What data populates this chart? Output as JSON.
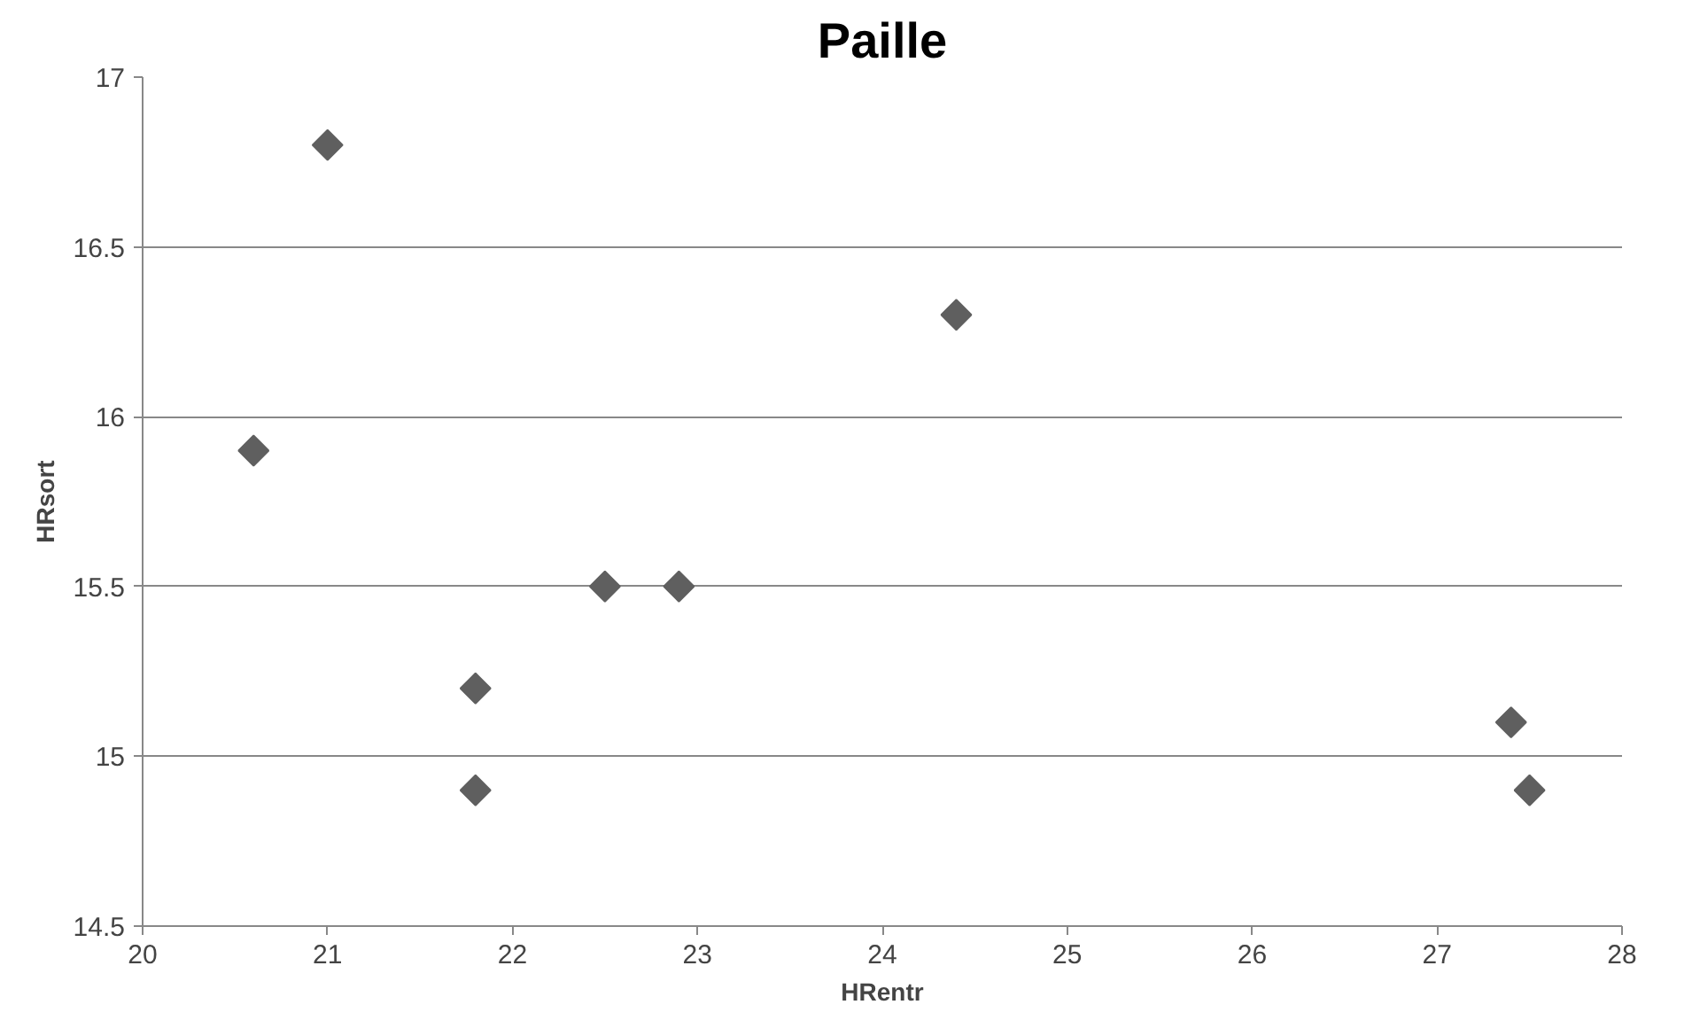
{
  "chart_data": {
    "type": "scatter",
    "title": "Paille",
    "xlabel": "HRentr",
    "ylabel": "HRsort",
    "x": [
      20.6,
      21.0,
      21.8,
      21.8,
      22.5,
      22.9,
      24.4,
      27.4,
      27.5
    ],
    "series": [
      {
        "color": "#5f5f5f",
        "values": [
          15.9,
          16.8,
          15.2,
          14.9,
          15.5,
          15.5,
          16.3,
          15.1,
          14.9
        ]
      }
    ],
    "xlim": [
      20,
      28
    ],
    "xticks": [
      20,
      21,
      22,
      23,
      24,
      25,
      26,
      27,
      28
    ],
    "ylim": [
      14.5,
      17
    ],
    "yticks": [
      14.5,
      15,
      15.5,
      16,
      16.5,
      17
    ],
    "grid": "y",
    "marker": "diamond"
  }
}
